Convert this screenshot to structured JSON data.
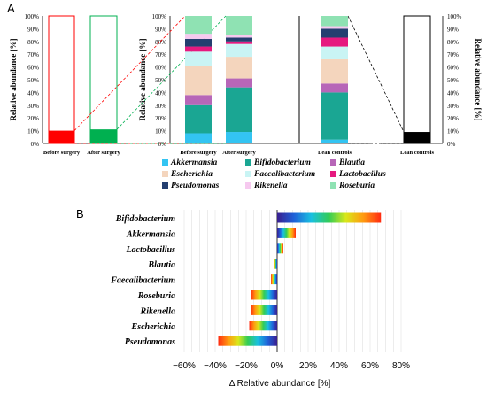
{
  "panels": {
    "a_label": "A",
    "b_label": "B"
  },
  "chart_data": [
    {
      "type": "bar",
      "subtype": "stacked-100",
      "panel": "A",
      "ylabel": "Relative abundance [%]",
      "ylabel_right": "Relative abundance [%]",
      "ylim": [
        0,
        100
      ],
      "yticks": [
        "0%",
        "10%",
        "20%",
        "30%",
        "40%",
        "50%",
        "60%",
        "70%",
        "80%",
        "90%",
        "100%"
      ],
      "small_bars": {
        "categories": [
          "Before surgery",
          "After surgery",
          "Lean controls"
        ],
        "filled_fraction": [
          10,
          11,
          9
        ],
        "colors": [
          "#ff0000",
          "#00b050",
          "#000000"
        ]
      },
      "categories": [
        "Before surgery",
        "After surgery",
        "Lean controls"
      ],
      "legend": [
        "Akkermansia",
        "Bifidobacterium",
        "Blautia",
        "Escherichia",
        "Faecalibacterium",
        "Lactobacillus",
        "Pseudomonas",
        "Rikenella",
        "Roseburia"
      ],
      "series": [
        {
          "name": "Akkermansia",
          "color": "#33c4f2",
          "values": [
            8,
            9,
            3
          ]
        },
        {
          "name": "Bifidobacterium",
          "color": "#1aa693",
          "values": [
            22,
            35,
            37
          ]
        },
        {
          "name": "Blautia",
          "color": "#b766b8",
          "values": [
            8,
            7,
            7
          ]
        },
        {
          "name": "Escherichia",
          "color": "#f4d5bd",
          "values": [
            23,
            17,
            19
          ]
        },
        {
          "name": "Faecalibacterium",
          "color": "#c9f4f4",
          "values": [
            11,
            10,
            10
          ]
        },
        {
          "name": "Lactobacillus",
          "color": "#e6197f",
          "values": [
            4,
            2,
            7
          ]
        },
        {
          "name": "Pseudomonas",
          "color": "#243f70",
          "values": [
            6,
            3,
            7
          ]
        },
        {
          "name": "Rikenella",
          "color": "#f6c9ef",
          "values": [
            4,
            2,
            2
          ]
        },
        {
          "name": "Roseburia",
          "color": "#8fe2b3",
          "values": [
            14,
            15,
            8
          ]
        }
      ]
    },
    {
      "type": "bar",
      "orientation": "horizontal",
      "panel": "B",
      "xlabel": "Δ Relative abundance [%]",
      "xlim": [
        -60,
        80
      ],
      "xticks": [
        "−60%",
        "−40%",
        "−20%",
        "0%",
        "20%",
        "40%",
        "60%",
        "80%"
      ],
      "categories": [
        "Bifidobacterium",
        "Akkermansia",
        "Lactobacillus",
        "Blautia",
        "Faecalibacterium",
        "Roseburia",
        "Rikenella",
        "Escherichia",
        "Pseudomonas"
      ],
      "values": [
        67,
        12,
        4,
        -2,
        -4,
        -17,
        -17,
        -18,
        -38
      ]
    }
  ]
}
